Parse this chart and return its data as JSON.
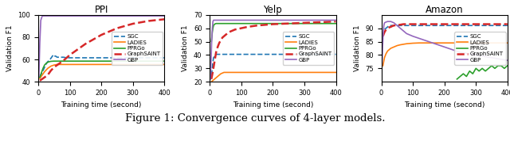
{
  "plots": [
    {
      "title": "PPI",
      "xlabel": "Training time (second)",
      "ylabel": "Validation F1",
      "ylim": [
        40,
        100
      ],
      "xlim": [
        0,
        400
      ],
      "yticks": [
        40,
        60,
        80,
        100
      ],
      "xticks": [
        0,
        100,
        200,
        300,
        400
      ],
      "legend_loc": "center right",
      "series": [
        {
          "name": "SGC",
          "color": "#1f77b4",
          "linestyle": "--",
          "linewidth": 1.2,
          "xs": [
            5,
            10,
            15,
            20,
            25,
            30,
            35,
            40,
            45,
            48,
            50,
            55,
            60,
            65,
            70,
            75,
            80,
            90,
            100,
            120,
            150,
            200,
            250,
            300,
            350,
            400
          ],
          "ys": [
            44,
            47,
            50,
            53,
            56,
            58,
            59,
            61,
            63,
            64,
            63,
            63,
            62,
            62,
            62,
            62,
            62,
            61.5,
            61.5,
            61.5,
            61.5,
            61.5,
            61.5,
            61.5,
            61.5,
            61.5
          ]
        },
        {
          "name": "LADIES",
          "color": "#ff7f0e",
          "linestyle": "-",
          "linewidth": 1.2,
          "xs": [
            5,
            10,
            15,
            20,
            25,
            30,
            35,
            40,
            50,
            60,
            80,
            100,
            150,
            200,
            250,
            300,
            350,
            400
          ],
          "ys": [
            43,
            45,
            47,
            49,
            50.5,
            52,
            53,
            54,
            55,
            55.5,
            55.5,
            55.5,
            55.5,
            55.5,
            55.5,
            55.5,
            55.5,
            55.5
          ]
        },
        {
          "name": "PPRGo",
          "color": "#2ca02c",
          "linestyle": "-",
          "linewidth": 1.2,
          "xs": [
            5,
            10,
            15,
            20,
            25,
            30,
            35,
            40,
            50,
            60,
            80,
            100,
            150,
            200,
            250,
            300,
            350,
            400
          ],
          "ys": [
            44,
            48,
            52,
            55,
            56.5,
            57.5,
            58,
            58.3,
            58.5,
            58.5,
            58.5,
            58.5,
            58.5,
            58.5,
            58.5,
            58.5,
            58.5,
            58.5
          ]
        },
        {
          "name": "GraphSAINT",
          "color": "#d62728",
          "linestyle": "--",
          "linewidth": 1.8,
          "xs": [
            5,
            10,
            15,
            20,
            25,
            30,
            35,
            40,
            50,
            60,
            70,
            80,
            100,
            120,
            150,
            200,
            250,
            300,
            350,
            400
          ],
          "ys": [
            41,
            42,
            43,
            44,
            45,
            46,
            48,
            50,
            53,
            55,
            57,
            59,
            64,
            68,
            74,
            82,
            88,
            92,
            94.5,
            96
          ]
        },
        {
          "name": "GBP",
          "color": "#9467bd",
          "linestyle": "-",
          "linewidth": 1.2,
          "xs": [
            2,
            5,
            8,
            12,
            15,
            20,
            25,
            50,
            100,
            200,
            300,
            400
          ],
          "ys": [
            45,
            75,
            95,
            98.5,
            99,
            99,
            99,
            99,
            99,
            99,
            99,
            99
          ]
        }
      ]
    },
    {
      "title": "Yelp",
      "xlabel": "Training time (second)",
      "ylabel": "Validation F1",
      "ylim": [
        20,
        70
      ],
      "xlim": [
        0,
        400
      ],
      "yticks": [
        20,
        30,
        40,
        50,
        60,
        70
      ],
      "xticks": [
        0,
        100,
        200,
        300,
        400
      ],
      "legend_loc": "center right",
      "series": [
        {
          "name": "SGC",
          "color": "#1f77b4",
          "linestyle": "--",
          "linewidth": 1.2,
          "xs": [
            5,
            8,
            10,
            12,
            15,
            18,
            20,
            25,
            30,
            35,
            40,
            50,
            100,
            200,
            300,
            400
          ],
          "ys": [
            25,
            30,
            35,
            38,
            39,
            40,
            40.5,
            40.5,
            40.5,
            40.5,
            40.5,
            40.5,
            40.5,
            40.5,
            40.5,
            40.5
          ]
        },
        {
          "name": "LADIES",
          "color": "#ff7f0e",
          "linestyle": "-",
          "linewidth": 1.2,
          "xs": [
            5,
            10,
            15,
            20,
            25,
            30,
            35,
            40,
            45,
            50,
            60,
            100,
            200,
            300,
            400
          ],
          "ys": [
            20,
            21,
            22,
            23,
            24,
            25,
            26,
            26.5,
            27,
            27,
            27,
            27,
            27,
            27,
            27
          ]
        },
        {
          "name": "PPRGo",
          "color": "#2ca02c",
          "linestyle": "-",
          "linewidth": 1.2,
          "xs": [
            5,
            8,
            10,
            12,
            15,
            20,
            25,
            30,
            40,
            50,
            60,
            80,
            100,
            150,
            200,
            250,
            300,
            350,
            400
          ],
          "ys": [
            50,
            57,
            60,
            62,
            63,
            63.5,
            63.5,
            63.5,
            63.5,
            63.5,
            63.5,
            63.5,
            63.5,
            63.5,
            63.5,
            63.5,
            63.5,
            63.5,
            63.5
          ]
        },
        {
          "name": "GraphSAINT",
          "color": "#d62728",
          "linestyle": "--",
          "linewidth": 1.8,
          "xs": [
            5,
            10,
            15,
            20,
            25,
            30,
            40,
            50,
            60,
            80,
            100,
            120,
            150,
            200,
            250,
            300,
            350,
            400
          ],
          "ys": [
            22,
            28,
            35,
            42,
            46,
            49,
            53,
            55,
            57,
            59,
            60,
            61,
            62,
            63,
            63.5,
            64,
            64.5,
            65
          ]
        },
        {
          "name": "GBP",
          "color": "#9467bd",
          "linestyle": "-",
          "linewidth": 1.2,
          "xs": [
            2,
            4,
            6,
            8,
            10,
            12,
            15,
            20,
            30,
            50,
            100,
            200,
            300,
            400
          ],
          "ys": [
            22,
            35,
            50,
            60,
            65,
            66,
            66,
            66,
            66,
            66,
            66,
            66,
            66,
            66
          ]
        }
      ]
    },
    {
      "title": "Amazon",
      "xlabel": "Training time (second)",
      "ylabel": "Validation F1",
      "ylim": [
        70,
        95
      ],
      "xlim": [
        0,
        400
      ],
      "yticks": [
        75,
        80,
        85,
        90
      ],
      "xticks": [
        0,
        100,
        200,
        300,
        400
      ],
      "legend_loc": "center right",
      "series": [
        {
          "name": "SGC",
          "color": "#1f77b4",
          "linestyle": "--",
          "linewidth": 1.2,
          "xs": [
            5,
            10,
            15,
            20,
            25,
            30,
            40,
            50,
            60,
            80,
            100,
            150,
            200,
            250,
            300,
            350,
            400
          ],
          "ys": [
            87,
            89.5,
            90,
            90.5,
            91,
            91,
            91,
            91,
            91,
            91,
            91,
            91,
            91,
            91,
            91,
            91,
            91
          ]
        },
        {
          "name": "LADIES",
          "color": "#ff7f0e",
          "linestyle": "-",
          "linewidth": 1.2,
          "xs": [
            5,
            10,
            15,
            20,
            25,
            30,
            40,
            50,
            60,
            70,
            80,
            100,
            120,
            150,
            200,
            250,
            300,
            350,
            400
          ],
          "ys": [
            76,
            79,
            80.5,
            81.5,
            82,
            82.5,
            83,
            83.5,
            83.8,
            84,
            84.2,
            84.4,
            84.5,
            84.5,
            84.5,
            84.5,
            84.5,
            84.5,
            84.5
          ]
        },
        {
          "name": "PPRGo",
          "color": "#2ca02c",
          "linestyle": "-",
          "linewidth": 1.2,
          "xs": [
            240,
            250,
            260,
            270,
            280,
            290,
            300,
            310,
            320,
            330,
            340,
            350,
            360,
            370,
            380,
            390,
            400
          ],
          "ys": [
            71,
            72,
            73,
            72,
            74,
            73,
            75,
            74,
            75,
            74,
            75,
            76,
            75,
            76,
            76,
            75,
            76
          ]
        },
        {
          "name": "GraphSAINT",
          "color": "#d62728",
          "linestyle": "--",
          "linewidth": 1.8,
          "xs": [
            5,
            10,
            15,
            20,
            25,
            30,
            35,
            40,
            50,
            60,
            70,
            80,
            100,
            150,
            200,
            250,
            300,
            350,
            400
          ],
          "ys": [
            87,
            88.5,
            89.5,
            90,
            90.3,
            90.5,
            90.8,
            91,
            91.2,
            91.3,
            91.5,
            91.5,
            91.5,
            91.5,
            91.5,
            91.5,
            91.5,
            91.5,
            91.5
          ]
        },
        {
          "name": "GBP",
          "color": "#9467bd",
          "linestyle": "-",
          "linewidth": 1.2,
          "xs": [
            2,
            4,
            6,
            8,
            10,
            15,
            20,
            25,
            30,
            40,
            50,
            60,
            80,
            100,
            150,
            200,
            250,
            300,
            350,
            400
          ],
          "ys": [
            76,
            83,
            88,
            91,
            92,
            92.3,
            92.5,
            92.5,
            92.5,
            92,
            91,
            90,
            88,
            87,
            85,
            83,
            81,
            80,
            79,
            78
          ]
        }
      ]
    }
  ],
  "figure_caption": "Figure 1: Convergence curves of 4-layer models.",
  "caption_fontsize": 9.5
}
